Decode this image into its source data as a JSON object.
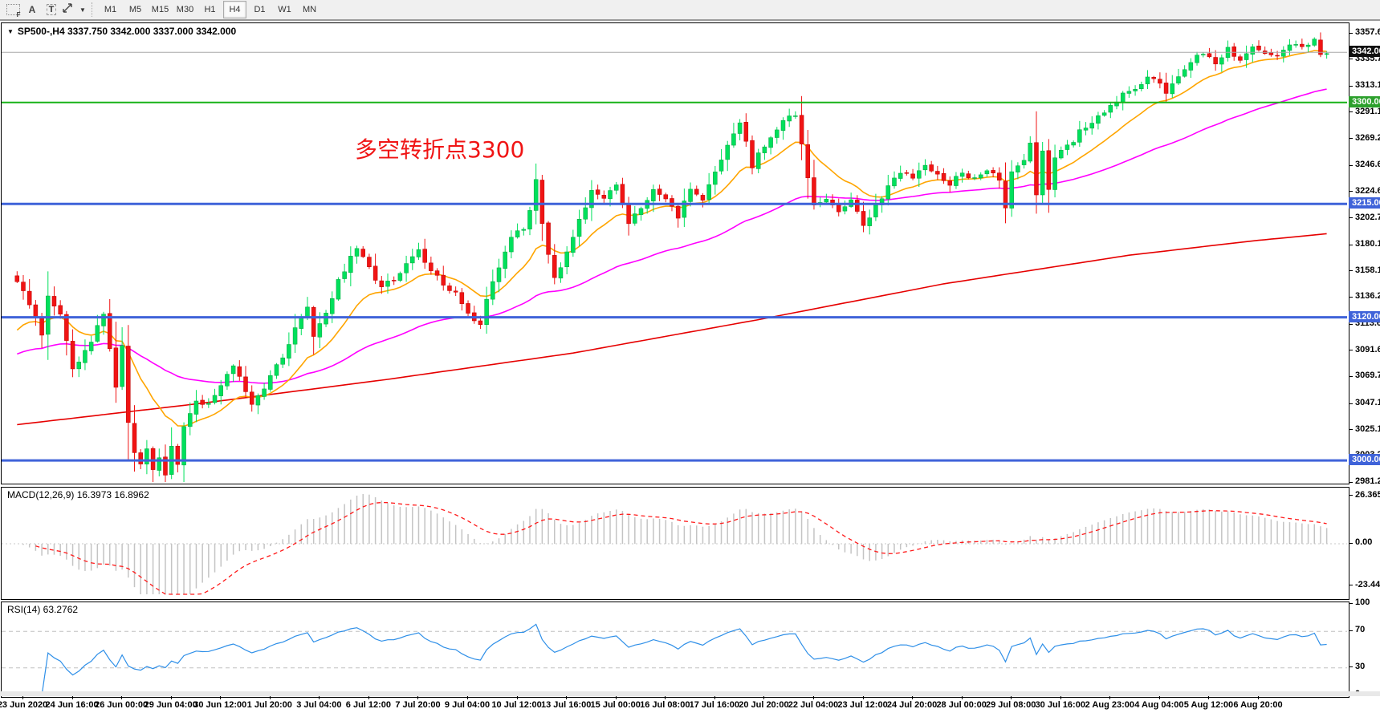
{
  "toolbar": {
    "icons": [
      {
        "name": "grid-f-icon",
        "glyph": "F"
      },
      {
        "name": "text-a-icon",
        "glyph": "A"
      },
      {
        "name": "text-t-icon",
        "glyph": "T"
      },
      {
        "name": "crosshair-move-icon",
        "glyph": ""
      },
      {
        "name": "dropdown-caret-icon",
        "glyph": "▼"
      }
    ],
    "timeframes": [
      "M1",
      "M5",
      "M15",
      "M30",
      "H1",
      "H4",
      "D1",
      "W1",
      "MN"
    ],
    "active_timeframe": "H4"
  },
  "chart": {
    "collapse_glyph": "▼",
    "title": "SP500-,H4  3337.750 3342.000 3337.000 3342.000",
    "annotation": {
      "text": "多空转折点3300",
      "color": "#f01414"
    },
    "colors": {
      "candle_up": "#00e05c",
      "candle_up_border": "#00a33c",
      "candle_down": "#f01414",
      "candle_down_border": "#c00000",
      "ma_orange": "#ffa500",
      "ma_magenta": "#ff00ff",
      "ma_red": "#e60000",
      "hline_blue": "#3f63d9",
      "hline_green": "#17b217",
      "current_price_line": "#a8a8a8",
      "macd_hist": "#c4c4c4",
      "macd_signal": "#ff1a1a",
      "rsi_line": "#2e8fe8",
      "rsi_levels": "#c0c0c0"
    }
  },
  "chart_data": {
    "type": "candlestick",
    "symbol": "SP500-",
    "timeframe": "H4",
    "ohlc_current": {
      "open": 3337.75,
      "high": 3342.0,
      "low": 3337.0,
      "close": 3342.0
    },
    "bars": 213,
    "price_axis_ticks": [
      "3357.66",
      "3335.72",
      "3313.11",
      "3291.16",
      "3269.22",
      "3246.61",
      "3224.66",
      "3202.72",
      "3180.11",
      "3158.16",
      "3136.22",
      "3113.61",
      "3091.66",
      "3069.72",
      "3047.11",
      "3025.16",
      "3003.22",
      "2981.27"
    ],
    "price_axis_top_value": 3357.66,
    "price_axis_bottom_value": 2981.27,
    "price_tags": [
      {
        "value": "3342.00",
        "price": 3342.0,
        "bg": "#111111"
      },
      {
        "value": "3300.00",
        "price": 3300.0,
        "bg": "#2ca02c"
      },
      {
        "value": "3215.00",
        "price": 3215.0,
        "bg": "#3f63d9"
      },
      {
        "value": "3120.00",
        "price": 3120.0,
        "bg": "#3f63d9"
      },
      {
        "value": "3000.00",
        "price": 3000.0,
        "bg": "#3f63d9"
      }
    ],
    "hlines": [
      {
        "price": 3342.0,
        "color": "#a8a8a8",
        "width": 1,
        "kind": "current-price"
      },
      {
        "price": 3300.0,
        "color": "#17b217",
        "width": 2,
        "kind": "resistance-green"
      },
      {
        "price": 3215.0,
        "color": "#3f63d9",
        "width": 3,
        "kind": "support-blue"
      },
      {
        "price": 3120.0,
        "color": "#3f63d9",
        "width": 3,
        "kind": "support-blue"
      },
      {
        "price": 3000.0,
        "color": "#3f63d9",
        "width": 3,
        "kind": "support-blue"
      }
    ],
    "x_labels": [
      "23 Jun 2020",
      "24 Jun 16:00",
      "26 Jun 00:00",
      "29 Jun 04:00",
      "30 Jun 12:00",
      "1 Jul 20:00",
      "3 Jul 04:00",
      "6 Jul 12:00",
      "7 Jul 20:00",
      "9 Jul 04:00",
      "10 Jul 12:00",
      "13 Jul 16:00",
      "15 Jul 00:00",
      "16 Jul 08:00",
      "17 Jul 16:00",
      "20 Jul 20:00",
      "22 Jul 04:00",
      "23 Jul 12:00",
      "24 Jul 20:00",
      "28 Jul 00:00",
      "29 Jul 08:00",
      "30 Jul 16:00",
      "2 Aug 23:00",
      "4 Aug 04:00",
      "5 Aug 12:00",
      "6 Aug 20:00"
    ],
    "close_waypoints": [
      [
        0,
        3148
      ],
      [
        2,
        3132
      ],
      [
        4,
        3106
      ],
      [
        5,
        3140
      ],
      [
        7,
        3122
      ],
      [
        9,
        3078
      ],
      [
        11,
        3090
      ],
      [
        14,
        3123
      ],
      [
        16,
        3062
      ],
      [
        17,
        3094
      ],
      [
        18,
        3030
      ],
      [
        19,
        3006
      ],
      [
        20,
        2996
      ],
      [
        21,
        3008
      ],
      [
        22,
        2992
      ],
      [
        23,
        3001
      ],
      [
        24,
        2988
      ],
      [
        25,
        3014
      ],
      [
        26,
        2999
      ],
      [
        27,
        3030
      ],
      [
        29,
        3052
      ],
      [
        31,
        3046
      ],
      [
        33,
        3063
      ],
      [
        35,
        3081
      ],
      [
        37,
        3058
      ],
      [
        38,
        3046
      ],
      [
        40,
        3062
      ],
      [
        42,
        3079
      ],
      [
        44,
        3097
      ],
      [
        45,
        3113
      ],
      [
        47,
        3129
      ],
      [
        48,
        3105
      ],
      [
        50,
        3123
      ],
      [
        52,
        3151
      ],
      [
        54,
        3169
      ],
      [
        55,
        3179
      ],
      [
        57,
        3161
      ],
      [
        59,
        3143
      ],
      [
        61,
        3153
      ],
      [
        63,
        3165
      ],
      [
        65,
        3175
      ],
      [
        67,
        3159
      ],
      [
        69,
        3147
      ],
      [
        71,
        3141
      ],
      [
        73,
        3121
      ],
      [
        75,
        3116
      ],
      [
        77,
        3151
      ],
      [
        79,
        3173
      ],
      [
        80,
        3187
      ],
      [
        82,
        3195
      ],
      [
        83,
        3211
      ],
      [
        84,
        3233
      ],
      [
        85,
        3197
      ],
      [
        86,
        3171
      ],
      [
        87,
        3153
      ],
      [
        89,
        3175
      ],
      [
        91,
        3201
      ],
      [
        93,
        3227
      ],
      [
        95,
        3219
      ],
      [
        97,
        3233
      ],
      [
        99,
        3199
      ],
      [
        101,
        3213
      ],
      [
        103,
        3227
      ],
      [
        105,
        3217
      ],
      [
        107,
        3205
      ],
      [
        109,
        3227
      ],
      [
        111,
        3219
      ],
      [
        113,
        3241
      ],
      [
        115,
        3263
      ],
      [
        117,
        3283
      ],
      [
        118,
        3267
      ],
      [
        119,
        3245
      ],
      [
        120,
        3259
      ],
      [
        122,
        3271
      ],
      [
        124,
        3285
      ],
      [
        126,
        3289
      ],
      [
        128,
        3239
      ],
      [
        129,
        3213
      ],
      [
        131,
        3221
      ],
      [
        133,
        3209
      ],
      [
        135,
        3217
      ],
      [
        137,
        3197
      ],
      [
        139,
        3213
      ],
      [
        141,
        3229
      ],
      [
        143,
        3241
      ],
      [
        145,
        3237
      ],
      [
        147,
        3245
      ],
      [
        149,
        3239
      ],
      [
        151,
        3233
      ],
      [
        153,
        3243
      ],
      [
        155,
        3235
      ],
      [
        157,
        3245
      ],
      [
        159,
        3237
      ],
      [
        160,
        3211
      ],
      [
        161,
        3241
      ],
      [
        163,
        3253
      ],
      [
        164,
        3265
      ],
      [
        165,
        3221
      ],
      [
        166,
        3257
      ],
      [
        167,
        3229
      ],
      [
        168,
        3253
      ],
      [
        170,
        3263
      ],
      [
        172,
        3275
      ],
      [
        174,
        3285
      ],
      [
        176,
        3290
      ],
      [
        178,
        3302
      ],
      [
        180,
        3310
      ],
      [
        182,
        3316
      ],
      [
        184,
        3322
      ],
      [
        186,
        3310
      ],
      [
        188,
        3322
      ],
      [
        190,
        3334
      ],
      [
        192,
        3341
      ],
      [
        194,
        3331
      ],
      [
        196,
        3345
      ],
      [
        198,
        3337
      ],
      [
        200,
        3349
      ],
      [
        202,
        3343
      ],
      [
        204,
        3337
      ],
      [
        206,
        3349
      ],
      [
        208,
        3345
      ],
      [
        210,
        3351
      ],
      [
        211,
        3339
      ],
      [
        212,
        3342
      ]
    ],
    "ma": {
      "orange_period": 14,
      "orange_init": 3103,
      "magenta_period": 55,
      "magenta_init": 3087,
      "red_waypoints": [
        [
          0,
          3030
        ],
        [
          30,
          3048
        ],
        [
          60,
          3068
        ],
        [
          90,
          3090
        ],
        [
          120,
          3118
        ],
        [
          150,
          3148
        ],
        [
          180,
          3172
        ],
        [
          200,
          3184
        ],
        [
          212,
          3190
        ]
      ]
    },
    "macd": {
      "label": "MACD(12,26,9) 16.3973 16.8962",
      "fast": 12,
      "slow": 26,
      "signal": 9,
      "value_main": 16.3973,
      "value_signal": 16.8962,
      "axis_ticks": [
        "26.3655",
        "0.00",
        "-23.4467"
      ],
      "axis_max": 26.3655,
      "axis_min": -23.4467
    },
    "rsi": {
      "label": "RSI(14) 63.2762",
      "period": 14,
      "value": 63.2762,
      "axis_ticks": [
        "100",
        "70",
        "30",
        "0"
      ],
      "levels": [
        70,
        30
      ]
    }
  }
}
